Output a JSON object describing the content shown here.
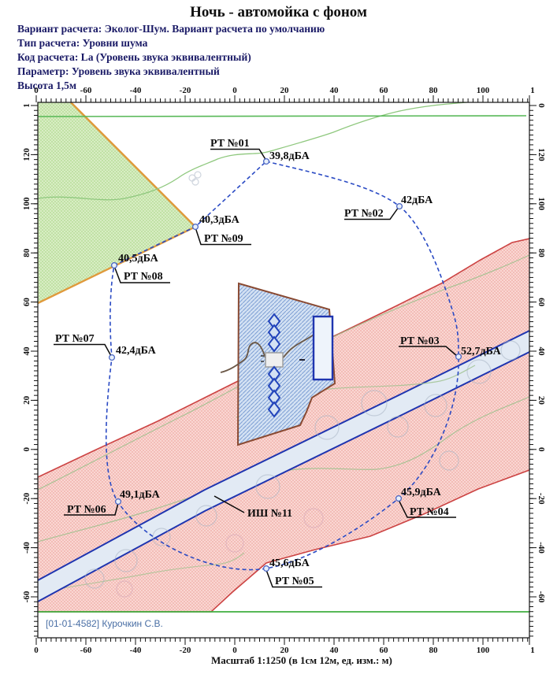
{
  "title": "Ночь - автомойка с фоном",
  "header_lines": [
    "Вариант расчета: Эколог-Шум. Вариант расчета по умолчанию",
    "Тип расчета: Уровни шума",
    "Код расчета: La (Уровень звука эквивалентный)",
    "Параметр: Уровень звука эквивалентный",
    "Высота 1,5м"
  ],
  "map": {
    "points": [
      {
        "name": "РТ №01",
        "value": "39,8дБА"
      },
      {
        "name": "РТ №02",
        "value": "42дБА"
      },
      {
        "name": "РТ №03",
        "value": "52,7дБА"
      },
      {
        "name": "РТ №04",
        "value": "45,9дБА"
      },
      {
        "name": "РТ №05",
        "value": "45,6дБА"
      },
      {
        "name": "РТ №06",
        "value": "49,1дБА"
      },
      {
        "name": "РТ №07",
        "value": "42,4дБА"
      },
      {
        "name": "РТ №08",
        "value": "40,5дБА"
      },
      {
        "name": "РТ №09",
        "value": "40,3дБА"
      }
    ],
    "noise_source_label": "ИШ №11"
  },
  "axes": {
    "x_labels": [
      "0",
      "-60",
      "-40",
      "-20",
      "0",
      "20",
      "40",
      "60",
      "80",
      "100",
      "1"
    ],
    "y_left_labels": [
      "1",
      "120",
      "100",
      "80",
      "60",
      "40",
      "20",
      "0",
      "-20",
      "-40",
      "-60"
    ],
    "y_right_labels": [
      "0",
      "120",
      "100",
      "80",
      "60",
      "40",
      "20",
      "0",
      "-20",
      "-40",
      "-60"
    ]
  },
  "footer": {
    "credit": "[01-01-4582] Курочкин С.В.",
    "scale_note": "Масштаб 1:1250 (в 1см 12м, ед. изм.: м)"
  },
  "colors": {
    "green_zone_border": "#e09a3c",
    "green_zone_fill": "#ddefca",
    "pink_zone_fill": "#fbdcd8",
    "pink_zone_border": "#cc4343",
    "road_fill": "#e2eaf4",
    "road_border": "#1f35b0",
    "site_fill": "#d3e1f3",
    "site_border": "#8a4a32",
    "isoline_dashed": "#2b4bc4",
    "header_text": "#1a1a66",
    "credit_text": "#4a6fa5"
  }
}
